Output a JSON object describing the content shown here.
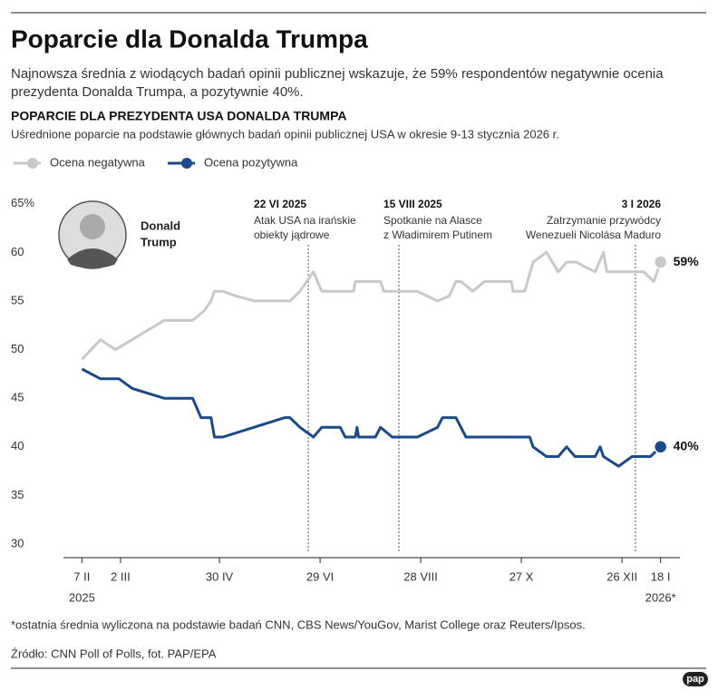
{
  "chart_data": {
    "type": "line",
    "title": "Poparcie dla Donalda Trumpa",
    "subtitle": [
      "Najnowsza średnia z wiodących badań opinii publicznej wskazuje, że 59% respondentów negatywnie ocenia",
      "prezydenta Donalda Trumpa, a pozytywnie 40%."
    ],
    "chart_title": "POPARCIE DLA PREZYDENTA USA DONALDA TRUMPA",
    "chart_subtitle": "Uśrednione poparcie na podstawie głównych badań opinii publicznej USA w okresie 9-13 stycznia 2026 r.",
    "photo_caption": [
      "Donald",
      "Trump"
    ],
    "xlim": [
      "2025-01-27",
      "2026-01-29"
    ],
    "xticks": [
      {
        "value": "2025-02-07",
        "label": "7 II"
      },
      {
        "value": "2025-03-02",
        "label": "2 III"
      },
      {
        "value": "2025-04-30",
        "label": "30 IV"
      },
      {
        "value": "2025-06-29",
        "label": "29 VI"
      },
      {
        "value": "2025-08-28",
        "label": "28 VIII"
      },
      {
        "value": "2025-10-27",
        "label": "27 X"
      },
      {
        "value": "2025-12-26",
        "label": "26 XII"
      },
      {
        "value": "2026-01-18",
        "label": "18 I"
      }
    ],
    "xtick_years": [
      {
        "value": "2025-02-07",
        "label": "2025"
      },
      {
        "value": "2026-01-18",
        "label": "2026*"
      }
    ],
    "ylim": [
      28.6,
      66
    ],
    "yticks": [
      30,
      35,
      40,
      45,
      50,
      55,
      60,
      {
        "value": 65,
        "label": "65%"
      }
    ],
    "grid": false,
    "legend": "top-left",
    "series": [
      {
        "name": "Ocena negatywna",
        "color": "#c8c8c8",
        "end_label": "59%",
        "x": [
          "2025-02-07",
          "2025-02-18",
          "2025-02-27",
          "2025-03-28",
          "2025-04-14",
          "2025-04-21",
          "2025-04-25",
          "2025-04-27",
          "2025-05-02",
          "2025-05-10",
          "2025-05-21",
          "2025-06-11",
          "2025-06-17",
          "2025-06-21",
          "2025-06-25",
          "2025-06-30",
          "2025-07-19",
          "2025-07-20",
          "2025-08-04",
          "2025-08-06",
          "2025-08-26",
          "2025-09-01",
          "2025-09-07",
          "2025-09-14",
          "2025-09-18",
          "2025-09-21",
          "2025-09-28",
          "2025-10-05",
          "2025-10-21",
          "2025-10-22",
          "2025-10-29",
          "2025-11-03",
          "2025-11-11",
          "2025-11-18",
          "2025-11-23",
          "2025-11-29",
          "2025-12-04",
          "2025-12-10",
          "2025-12-15",
          "2025-12-17",
          "2026-01-08",
          "2026-01-14",
          "2026-01-18"
        ],
        "values": [
          49,
          51,
          50,
          53,
          53,
          54,
          55,
          56,
          56,
          55.5,
          55,
          55,
          56,
          57,
          58,
          56,
          56,
          57,
          57,
          56,
          56,
          55.5,
          55,
          55.5,
          57,
          57,
          56,
          57,
          57,
          56,
          56,
          59,
          60,
          58,
          59,
          59,
          58.5,
          58,
          60,
          58,
          58,
          57,
          59
        ]
      },
      {
        "name": "Ocena pozytywna",
        "color": "#1a4a8a",
        "end_label": "40%",
        "x": [
          "2025-02-07",
          "2025-02-18",
          "2025-03-01",
          "2025-03-09",
          "2025-03-28",
          "2025-04-14",
          "2025-04-19",
          "2025-04-25",
          "2025-04-27",
          "2025-05-02",
          "2025-06-08",
          "2025-06-11",
          "2025-06-17",
          "2025-06-25",
          "2025-06-30",
          "2025-07-11",
          "2025-07-14",
          "2025-07-20",
          "2025-07-21",
          "2025-07-22",
          "2025-08-01",
          "2025-08-04",
          "2025-08-11",
          "2025-08-26",
          "2025-09-07",
          "2025-09-10",
          "2025-09-18",
          "2025-09-24",
          "2025-11-01",
          "2025-11-03",
          "2025-11-07",
          "2025-11-11",
          "2025-11-18",
          "2025-11-23",
          "2025-11-28",
          "2025-12-10",
          "2025-12-13",
          "2025-12-15",
          "2025-12-24",
          "2026-01-01",
          "2026-01-12",
          "2026-01-18"
        ],
        "values": [
          48,
          47,
          47,
          46,
          45,
          45,
          43,
          43,
          41,
          41,
          43,
          43,
          42,
          41,
          42,
          42,
          41,
          41,
          42,
          41,
          41,
          42,
          41,
          41,
          42,
          43,
          43,
          41,
          41,
          40,
          39.5,
          39,
          39,
          40,
          39,
          39,
          40,
          39,
          38,
          39,
          39,
          40
        ]
      }
    ],
    "annotations": [
      {
        "date": "2025-06-22",
        "label": "22 VI 2025",
        "text": [
          "Atak USA na irańskie",
          "obiekty jądrowe"
        ]
      },
      {
        "date": "2025-08-15",
        "label": "15 VIII 2025",
        "text": [
          "Spotkanie na Alasce",
          "z Władimirem Putinem"
        ]
      },
      {
        "date": "2026-01-03",
        "label": "3 I 2026",
        "text": [
          "Zatrzymanie przywódcy",
          "Wenezueli Nicolása Maduro"
        ]
      }
    ],
    "footnote": "*ostatnia średnia wyliczona na podstawie badań CNN, CBS News/YouGov, Marist College oraz Reuters/Ipsos.",
    "source": "Źródło: CNN Poll of Polls, fot. PAP/EPA",
    "logo": "pap"
  }
}
